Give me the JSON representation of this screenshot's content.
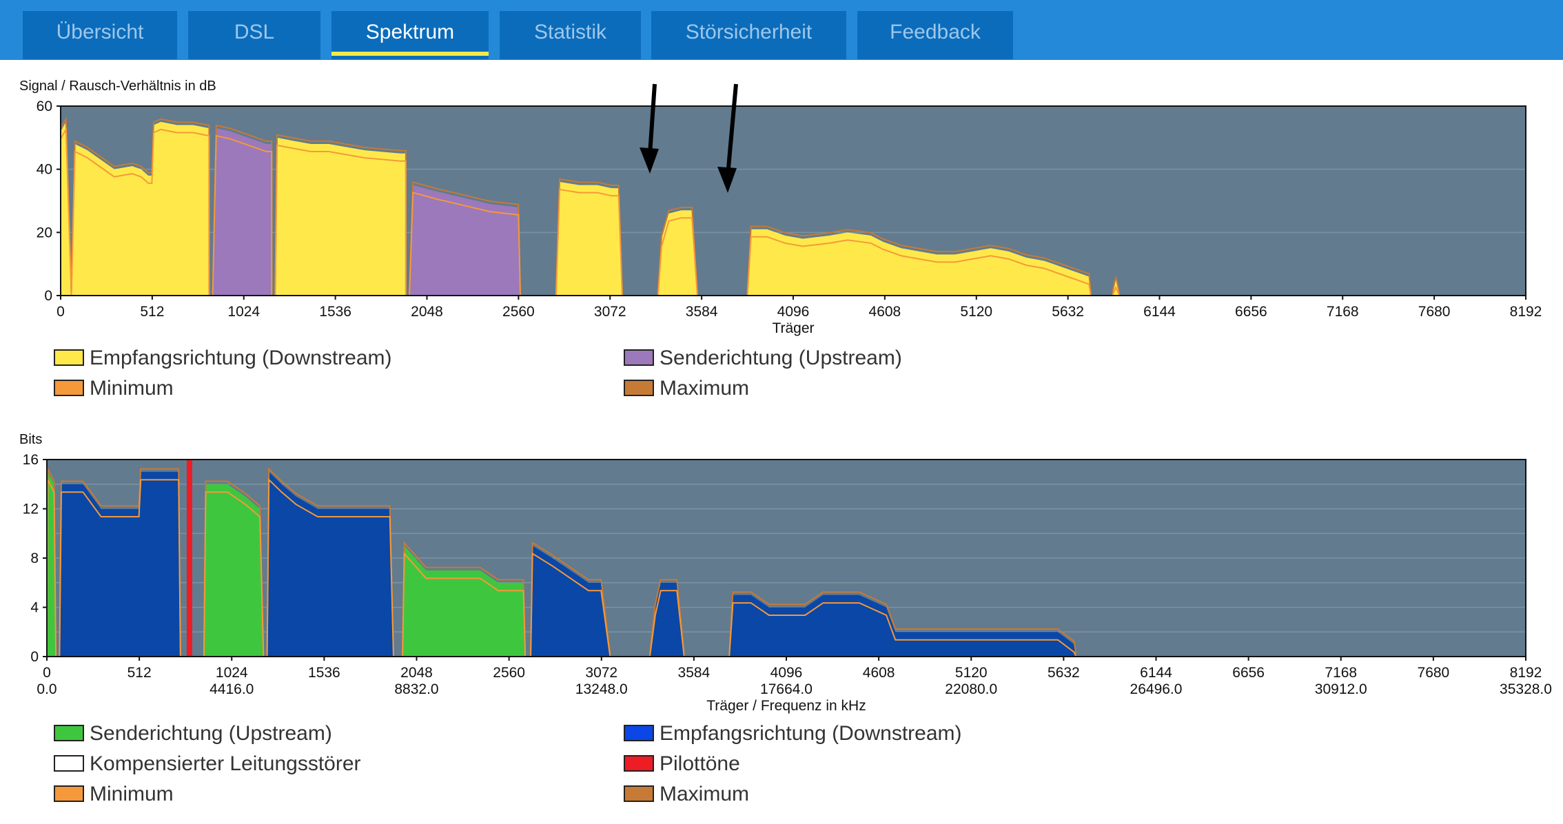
{
  "tabs": [
    {
      "label": "Übersicht",
      "active": false
    },
    {
      "label": "DSL",
      "active": false
    },
    {
      "label": "Spektrum",
      "active": true
    },
    {
      "label": "Statistik",
      "active": false
    },
    {
      "label": "Störsicherheit",
      "active": false
    },
    {
      "label": "Feedback",
      "active": false
    }
  ],
  "colors": {
    "tabbar": "#2489d9",
    "tab": "#0b6cbb",
    "tab_active_underline": "#f5e94a",
    "plot_bg": "#627b8f",
    "downstream_snr": "#ffe94a",
    "upstream_snr": "#9b79bb",
    "minimum": "#f5993a",
    "maximum": "#c77a35",
    "bits_upstream": "#3fc63f",
    "bits_downstream": "#0a47a6",
    "pilot": "#ee1c25",
    "compensated": "#ffffff"
  },
  "chart_data": [
    {
      "type": "area",
      "ylabel": "Signal / Rausch-Verhältnis in dB",
      "xlabel": "Träger",
      "xlim": [
        0,
        8192
      ],
      "ylim": [
        0,
        60
      ],
      "yticks": [
        0,
        20,
        40,
        60
      ],
      "xticks": [
        0,
        512,
        1024,
        1536,
        2048,
        2560,
        3072,
        3584,
        4096,
        4608,
        5120,
        5632,
        6144,
        6656,
        7168,
        7680,
        8192
      ],
      "legend": [
        "Empfangsrichtung (Downstream)",
        "Senderichtung (Upstream)",
        "Minimum",
        "Maximum"
      ],
      "annotations": [
        "arrow at ~3300 carrier, ~38 dB",
        "arrow at ~3750 carrier, ~33 dB"
      ],
      "series": [
        {
          "name": "Empfangsrichtung (Downstream)",
          "segments": [
            [
              [
                0,
                52
              ],
              [
                30,
                55
              ],
              [
                60,
                0
              ]
            ],
            [
              [
                60,
                0
              ],
              [
                80,
                48
              ],
              [
                150,
                46
              ],
              [
                250,
                42
              ],
              [
                300,
                40
              ],
              [
                400,
                41
              ],
              [
                450,
                40
              ],
              [
                490,
                38
              ],
              [
                510,
                38
              ],
              [
                520,
                54
              ],
              [
                560,
                55
              ],
              [
                650,
                54
              ],
              [
                740,
                54
              ],
              [
                830,
                53
              ],
              [
                830,
                0
              ]
            ],
            [
              [
                1200,
                0
              ],
              [
                1210,
                50
              ],
              [
                1300,
                49
              ],
              [
                1400,
                48
              ],
              [
                1500,
                48
              ],
              [
                1600,
                47
              ],
              [
                1700,
                46
              ],
              [
                1900,
                45
              ],
              [
                1930,
                45
              ],
              [
                1930,
                0
              ]
            ],
            [
              [
                2770,
                0
              ],
              [
                2790,
                36
              ],
              [
                2900,
                35
              ],
              [
                3000,
                35
              ],
              [
                3080,
                34
              ],
              [
                3120,
                34
              ],
              [
                3140,
                0
              ]
            ],
            [
              [
                3340,
                0
              ],
              [
                3360,
                18
              ],
              [
                3400,
                26
              ],
              [
                3470,
                27
              ],
              [
                3530,
                27
              ],
              [
                3560,
                0
              ]
            ],
            [
              [
                3840,
                0
              ],
              [
                3860,
                21
              ],
              [
                3950,
                21
              ],
              [
                4050,
                19
              ],
              [
                4150,
                18
              ],
              [
                4300,
                19
              ],
              [
                4400,
                20
              ],
              [
                4530,
                19
              ],
              [
                4600,
                17
              ],
              [
                4700,
                15
              ],
              [
                4800,
                14
              ],
              [
                4900,
                13
              ],
              [
                5000,
                13
              ],
              [
                5100,
                14
              ],
              [
                5200,
                15
              ],
              [
                5300,
                14
              ],
              [
                5400,
                12
              ],
              [
                5500,
                11
              ],
              [
                5600,
                9
              ],
              [
                5700,
                7
              ],
              [
                5750,
                6
              ],
              [
                5760,
                0
              ]
            ],
            [
              [
                5880,
                0
              ],
              [
                5900,
                5
              ],
              [
                5920,
                0
              ]
            ]
          ]
        },
        {
          "name": "Senderichtung (Upstream)",
          "segments": [
            [
              [
                850,
                0
              ],
              [
                870,
                53
              ],
              [
                950,
                52
              ],
              [
                1050,
                50
              ],
              [
                1150,
                48
              ],
              [
                1180,
                48
              ],
              [
                1180,
                0
              ]
            ],
            [
              [
                1950,
                0
              ],
              [
                1970,
                35
              ],
              [
                2100,
                33
              ],
              [
                2250,
                31
              ],
              [
                2400,
                29
              ],
              [
                2550,
                28
              ],
              [
                2560,
                28
              ],
              [
                2570,
                0
              ]
            ]
          ]
        }
      ]
    },
    {
      "type": "area",
      "ylabel": "Bits",
      "xlabel": "Träger / Frequenz in kHz",
      "xlim": [
        0,
        8192
      ],
      "ylim": [
        0,
        16
      ],
      "yticks": [
        0,
        4,
        8,
        12,
        16
      ],
      "xticks": [
        0,
        512,
        1024,
        1536,
        2048,
        2560,
        3072,
        3584,
        4096,
        4608,
        5120,
        5632,
        6144,
        6656,
        7168,
        7680,
        8192
      ],
      "xticks_secondary": [
        "0.0",
        "4416.0",
        "8832.0",
        "13248.0",
        "17664.0",
        "22080.0",
        "26496.0",
        "30912.0",
        "35328.0"
      ],
      "legend": [
        "Senderichtung (Upstream)",
        "Empfangsrichtung (Downstream)",
        "Kompensierter Leitungsstörer",
        "Pilottöne",
        "Minimum",
        "Maximum"
      ],
      "series": [
        {
          "name": "Senderichtung (Upstream)",
          "segments": [
            [
              [
                0,
                0
              ],
              [
                5,
                15
              ],
              [
                40,
                14
              ],
              [
                50,
                0
              ]
            ],
            [
              [
                870,
                0
              ],
              [
                880,
                14
              ],
              [
                1000,
                14
              ],
              [
                1100,
                13
              ],
              [
                1180,
                12
              ],
              [
                1200,
                0
              ]
            ],
            [
              [
                1970,
                0
              ],
              [
                1980,
                9
              ],
              [
                2100,
                7
              ],
              [
                2200,
                7
              ],
              [
                2400,
                7
              ],
              [
                2500,
                6
              ],
              [
                2600,
                6
              ],
              [
                2640,
                6
              ],
              [
                2650,
                0
              ]
            ]
          ]
        },
        {
          "name": "Empfangsrichtung (Downstream)",
          "segments": [
            [
              [
                70,
                0
              ],
              [
                80,
                14
              ],
              [
                200,
                14
              ],
              [
                300,
                12
              ],
              [
                400,
                12
              ],
              [
                510,
                12
              ],
              [
                520,
                15
              ],
              [
                640,
                15
              ],
              [
                730,
                15
              ],
              [
                740,
                0
              ]
            ],
            [
              [
                1220,
                0
              ],
              [
                1230,
                15
              ],
              [
                1300,
                14
              ],
              [
                1380,
                13
              ],
              [
                1500,
                12
              ],
              [
                1600,
                12
              ],
              [
                1900,
                12
              ],
              [
                1920,
                0
              ]
            ],
            [
              [
                2680,
                0
              ],
              [
                2690,
                9
              ],
              [
                2800,
                8
              ],
              [
                2900,
                7
              ],
              [
                3000,
                6
              ],
              [
                3070,
                6
              ],
              [
                3120,
                0
              ]
            ],
            [
              [
                3340,
                0
              ],
              [
                3370,
                4
              ],
              [
                3400,
                6
              ],
              [
                3460,
                6
              ],
              [
                3490,
                6
              ],
              [
                3530,
                0
              ]
            ],
            [
              [
                3780,
                0
              ],
              [
                3800,
                5
              ],
              [
                3900,
                5
              ],
              [
                4000,
                4
              ],
              [
                4100,
                4
              ],
              [
                4200,
                4
              ],
              [
                4300,
                5
              ],
              [
                4500,
                5
              ],
              [
                4650,
                4
              ],
              [
                4700,
                2
              ],
              [
                5600,
                2
              ],
              [
                5690,
                1
              ],
              [
                5700,
                0
              ]
            ]
          ]
        },
        {
          "name": "Pilottöne",
          "carrier": 790
        }
      ]
    }
  ]
}
